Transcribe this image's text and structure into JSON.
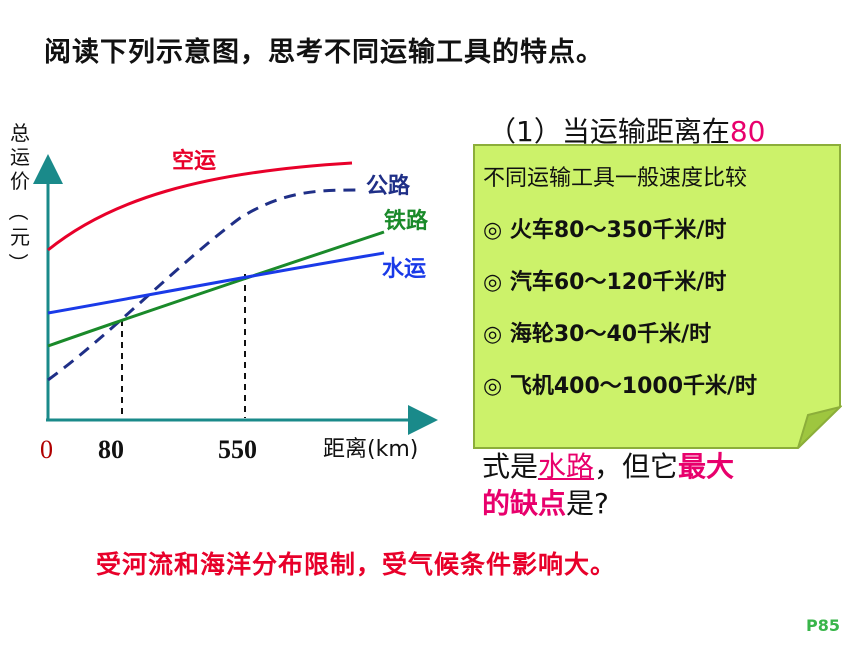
{
  "title": "阅读下列示意图，思考不同运输工具的特点。",
  "chart_data": {
    "type": "line",
    "ylabel": "总运价（元）",
    "ylabel_chars": [
      "总",
      "运",
      "价",
      "（",
      "元",
      "）"
    ],
    "xlabel": "距离(km)",
    "origin_label": "0",
    "x_ticks": [
      {
        "value": 80,
        "label": "80"
      },
      {
        "value": 550,
        "label": "550"
      }
    ],
    "series": [
      {
        "name": "空运",
        "color": "#e8002a",
        "style": "solid"
      },
      {
        "name": "公路",
        "color": "#1f2f87",
        "style": "dashed"
      },
      {
        "name": "铁路",
        "color": "#1a8a2a",
        "style": "solid"
      },
      {
        "name": "水运",
        "color": "#1a3ae8",
        "style": "solid"
      }
    ]
  },
  "question": {
    "line1_prefix": "（1）当运输距离在",
    "line1_num": "80",
    "line2_prefix": "式是",
    "line2_answer": "水路",
    "line2_mid": "，但它",
    "line2_highlight": "最大",
    "line3_highlight": "的缺点",
    "line3_suffix": "是?"
  },
  "note": {
    "title": "不同运输工具一般速度比较",
    "items": [
      "◎ 火车80～350千米/时",
      "◎ 汽车60～120千米/时",
      "◎ 海轮30～40千米/时",
      "◎ 飞机400～1000千米/时"
    ],
    "fill_color": "#ccf26a",
    "fold_color": "#9ec63f"
  },
  "answer": "受河流和海洋分布限制，受气候条件影响大。",
  "page_number": "P85"
}
